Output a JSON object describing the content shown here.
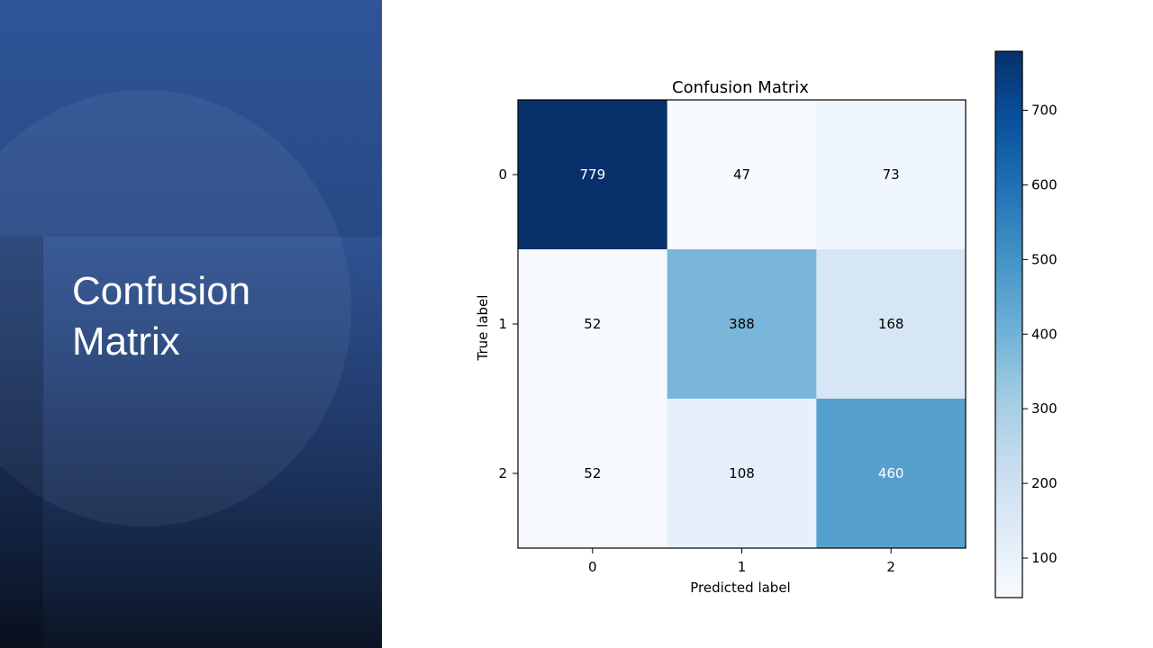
{
  "slide": {
    "title_line1": "Confusion",
    "title_line2": "Matrix"
  },
  "chart_data": {
    "type": "heatmap",
    "title": "Confusion Matrix",
    "xlabel": "Predicted label",
    "ylabel": "True label",
    "x_categories": [
      "0",
      "1",
      "2"
    ],
    "y_categories": [
      "0",
      "1",
      "2"
    ],
    "values": [
      [
        779,
        47,
        73
      ],
      [
        52,
        388,
        168
      ],
      [
        52,
        108,
        460
      ]
    ],
    "colormap": "Blues",
    "colorbar": {
      "min": 47,
      "max": 779,
      "ticks": [
        100,
        200,
        300,
        400,
        500,
        600,
        700
      ]
    }
  }
}
